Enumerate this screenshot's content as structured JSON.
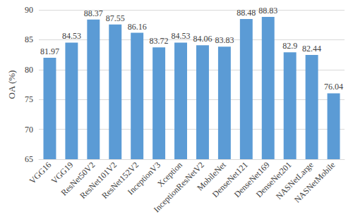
{
  "chart_data": {
    "type": "bar",
    "y_label": "OA (%)",
    "categories": [
      "VGG16",
      "VGG19",
      "ResNet50V2",
      "ResNet101V2",
      "ResNet152V2",
      "InceptionV3",
      "Xception",
      "InceptionResNetV2",
      "MobileNet",
      "DenseNet121",
      "DenseNet169",
      "DenseNet201",
      "NASNetLarge",
      "NASNetMobile"
    ],
    "values": [
      81.97,
      84.53,
      88.37,
      87.55,
      86.16,
      83.72,
      84.53,
      84.06,
      83.83,
      88.48,
      88.83,
      82.9,
      82.44,
      76.04
    ],
    "color": "#5b9bd5",
    "ylim": [
      65,
      90
    ],
    "yticks": [
      65,
      70,
      75,
      80,
      85,
      90
    ],
    "grid": true,
    "data_labels": true
  }
}
